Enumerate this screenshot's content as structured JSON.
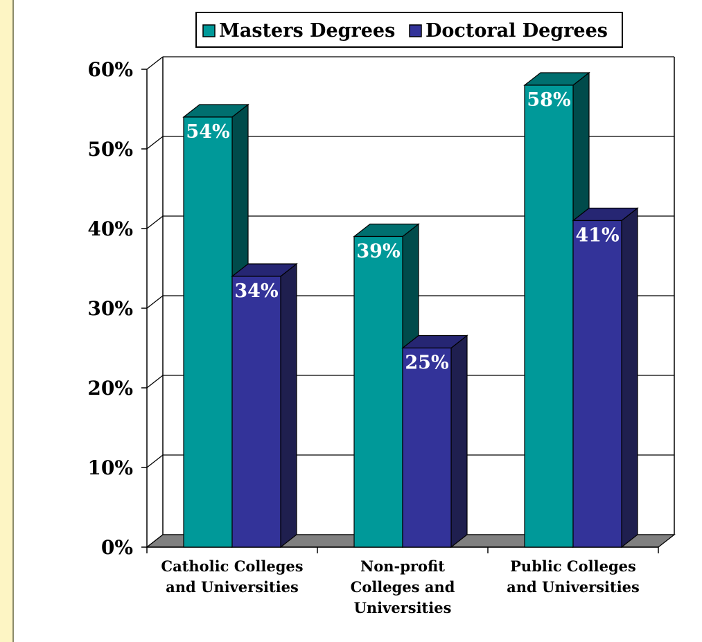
{
  "chart_data": {
    "type": "bar",
    "title": "",
    "xlabel": "",
    "ylabel": "",
    "categories": [
      [
        "Catholic Colleges",
        "and Universities"
      ],
      [
        "Non-profit",
        "Colleges and",
        "Universities"
      ],
      [
        "Public Colleges",
        "and Universities"
      ]
    ],
    "series": [
      {
        "name": "Masters Degrees",
        "values": [
          54,
          39,
          58
        ],
        "labels": [
          "54%",
          "39%",
          "58%"
        ]
      },
      {
        "name": "Doctoral Degrees",
        "values": [
          34,
          25,
          41
        ],
        "labels": [
          "34%",
          "25%",
          "41%"
        ]
      }
    ],
    "ylim": [
      0,
      60
    ],
    "yticks": [
      "0%",
      "10%",
      "20%",
      "30%",
      "40%",
      "50%",
      "60%"
    ],
    "grid": true,
    "legend_position": "top",
    "three_d": true,
    "colors": {
      "masters_front": "#009999",
      "masters_top": "#006f6f",
      "masters_side": "#004b4b",
      "doctoral_front": "#333399",
      "doctoral_top": "#262673",
      "doctoral_side": "#1f1f4f",
      "floor": "#808080",
      "background": "#fdf5c4",
      "plot_bg": "#ffffff",
      "label_text": "#ffffff"
    }
  }
}
